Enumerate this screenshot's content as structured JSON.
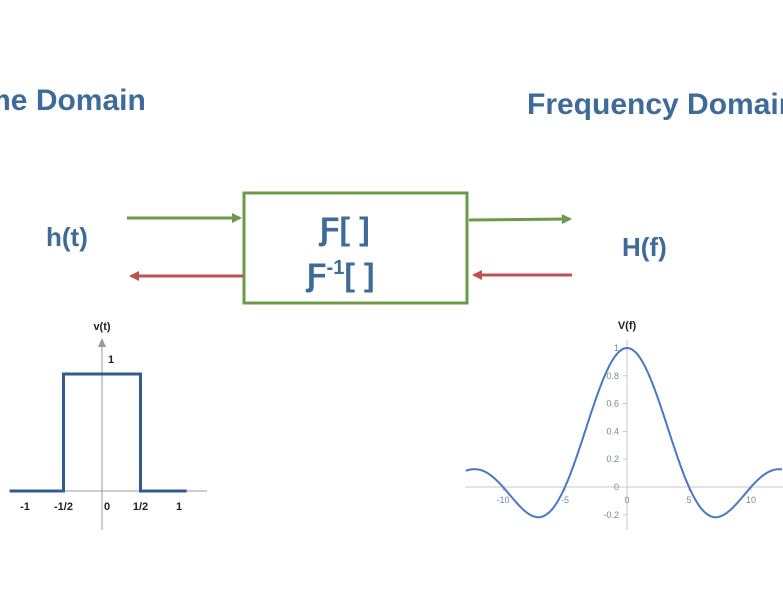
{
  "headings": {
    "time_domain": "Time Domain",
    "frequency_domain": "Frequency Domain"
  },
  "signals": {
    "time": "h(t)",
    "frequency": "H(f)"
  },
  "transform_box": {
    "forward": "Ƒ[  ]",
    "inverse_symbol": "Ƒ",
    "inverse_exponent": "-1",
    "inverse_brackets": "[  ]"
  },
  "colors": {
    "heading": "#3f6b9a",
    "box_border": "#6a9a4a",
    "forward_arrow": "#6a9a4a",
    "inverse_arrow": "#c0504d",
    "curve": "#4a78c4",
    "rect": "#2f5b8f"
  },
  "chart_data": [
    {
      "type": "line",
      "title": "",
      "ylabel": "v(t)",
      "xlabel": "",
      "x": [
        -1.2,
        -0.5,
        -0.5,
        0.5,
        0.5,
        1.1
      ],
      "y": [
        0,
        0,
        1,
        1,
        0,
        0
      ],
      "xlim": [
        -1.1,
        1.4
      ],
      "ylim": [
        0,
        1.3
      ],
      "x_ticks": [
        {
          "value": -1,
          "label": "-1"
        },
        {
          "value": -0.5,
          "label": "-1/2"
        },
        {
          "value": 0,
          "label": "0"
        },
        {
          "value": 0.5,
          "label": "1/2"
        },
        {
          "value": 1,
          "label": "1"
        }
      ],
      "y_ticks": [
        {
          "value": 1,
          "label": "1"
        }
      ],
      "grid": false
    },
    {
      "type": "line",
      "title": "",
      "ylabel": "V(f)",
      "xlabel": "",
      "function": "sin(pi*f/5)/(pi*f/5)",
      "xlim": [
        -13,
        13
      ],
      "ylim": [
        -0.25,
        1.05
      ],
      "x_ticks": [
        -10,
        -5,
        0,
        5,
        10
      ],
      "y_ticks": [
        -0.2,
        0,
        0.2,
        0.4,
        0.6,
        0.8,
        1
      ],
      "grid": false
    }
  ]
}
